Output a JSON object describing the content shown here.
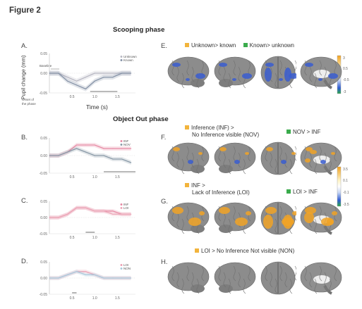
{
  "figure_title": "Figure 2",
  "sections": {
    "scooping": "Scooping phase",
    "object_out": "Object Out phase"
  },
  "colors": {
    "orange": "#f2b43c",
    "green": "#3aab4c",
    "pink": "#e68aa4",
    "grey": "#9aa3ad",
    "lightblue": "#a9c9dc",
    "blue_act": "#3a5dd0",
    "orange_act": "#f1a326"
  },
  "panels": {
    "A": {
      "letter": "A.",
      "ylabel": "Pupil change (mm)",
      "xlabel": "Time (s)",
      "baseline_label": "Baseline",
      "onset_label": "Onset of the phase",
      "legend": [
        "Unknown",
        "Known"
      ],
      "yticks": [
        "0.05",
        "0.00",
        "-0.05"
      ],
      "xticks": [
        "0.5",
        "1.0",
        "1.5"
      ]
    },
    "B": {
      "letter": "B.",
      "legend": [
        "INF",
        "NOV"
      ],
      "yticks": [
        "0.05",
        "0.00",
        "-0.05"
      ],
      "xticks": [
        "0.5",
        "1.0",
        "1.5"
      ]
    },
    "C": {
      "letter": "C.",
      "legend": [
        "INF",
        "LOI"
      ],
      "yticks": [
        "0.05",
        "0.00",
        "-0.05"
      ],
      "xticks": [
        "0.5",
        "1.0",
        "1.5"
      ]
    },
    "D": {
      "letter": "D.",
      "legend": [
        "LOI",
        "NON"
      ],
      "yticks": [
        "0.05",
        "0.00",
        "-0.05"
      ],
      "xticks": [
        "0.5",
        "1.0",
        "1.5"
      ]
    },
    "E": {
      "letter": "E.",
      "legend": [
        "Unknown> known",
        "Known> unknown"
      ],
      "colorbar": [
        "3",
        "0.5",
        "-0.5",
        "-3"
      ]
    },
    "F": {
      "letter": "F.",
      "legend_line1": "Inference (INF) >",
      "legend_line2": "No Inference visible (NOV)",
      "legend_b": "NOV > INF",
      "colorbar": [
        "3.5",
        "0.1",
        "-0.1",
        "-3.5"
      ]
    },
    "G": {
      "letter": "G.",
      "legend_line1": "INF >",
      "legend_line2": "Lack of Inference (LOI)",
      "legend_b": "LOI > INF"
    },
    "H": {
      "letter": "H.",
      "legend": "LOI > No Inference Not visible (NON)"
    }
  },
  "chart_data": [
    {
      "panel": "A",
      "type": "line",
      "x": [
        0.0,
        0.2,
        0.4,
        0.6,
        0.8,
        1.0,
        1.2,
        1.4,
        1.6,
        1.8
      ],
      "series": [
        {
          "name": "Unknown",
          "values": [
            0.0,
            0.0,
            -0.01,
            -0.02,
            -0.01,
            0.0,
            0.0,
            0.0,
            0.0,
            0.0
          ]
        },
        {
          "name": "Known",
          "values": [
            0.0,
            0.0,
            -0.02,
            -0.03,
            -0.04,
            -0.02,
            -0.01,
            -0.01,
            0.0,
            0.0
          ]
        }
      ],
      "ylim": [
        -0.05,
        0.05
      ]
    },
    {
      "panel": "B",
      "type": "line",
      "x": [
        0.0,
        0.2,
        0.4,
        0.6,
        0.8,
        1.0,
        1.2,
        1.4,
        1.6,
        1.8
      ],
      "series": [
        {
          "name": "INF",
          "values": [
            0.0,
            0.0,
            0.01,
            0.03,
            0.03,
            0.03,
            0.02,
            0.02,
            0.02,
            0.02
          ]
        },
        {
          "name": "NOV",
          "values": [
            0.0,
            0.0,
            0.01,
            0.02,
            0.01,
            0.0,
            0.0,
            -0.01,
            -0.01,
            -0.02
          ]
        }
      ],
      "ylim": [
        -0.05,
        0.05
      ]
    },
    {
      "panel": "C",
      "type": "line",
      "x": [
        0.0,
        0.2,
        0.4,
        0.6,
        0.8,
        1.0,
        1.2,
        1.4,
        1.6,
        1.8
      ],
      "series": [
        {
          "name": "INF",
          "values": [
            0.0,
            0.0,
            0.01,
            0.03,
            0.03,
            0.02,
            0.02,
            0.02,
            0.01,
            0.01
          ]
        },
        {
          "name": "LOI",
          "values": [
            0.0,
            0.0,
            0.01,
            0.03,
            0.03,
            0.02,
            0.02,
            0.01,
            0.01,
            0.01
          ]
        }
      ],
      "ylim": [
        -0.05,
        0.05
      ]
    },
    {
      "panel": "D",
      "type": "line",
      "x": [
        0.0,
        0.2,
        0.4,
        0.6,
        0.8,
        1.0,
        1.2,
        1.4,
        1.6,
        1.8
      ],
      "series": [
        {
          "name": "LOI",
          "values": [
            0.0,
            0.0,
            0.01,
            0.02,
            0.02,
            0.01,
            0.0,
            0.0,
            0.0,
            0.0
          ]
        },
        {
          "name": "NON",
          "values": [
            0.0,
            0.0,
            0.01,
            0.02,
            0.01,
            0.01,
            0.0,
            0.0,
            0.0,
            0.0
          ]
        }
      ],
      "ylim": [
        -0.05,
        0.05
      ]
    }
  ]
}
